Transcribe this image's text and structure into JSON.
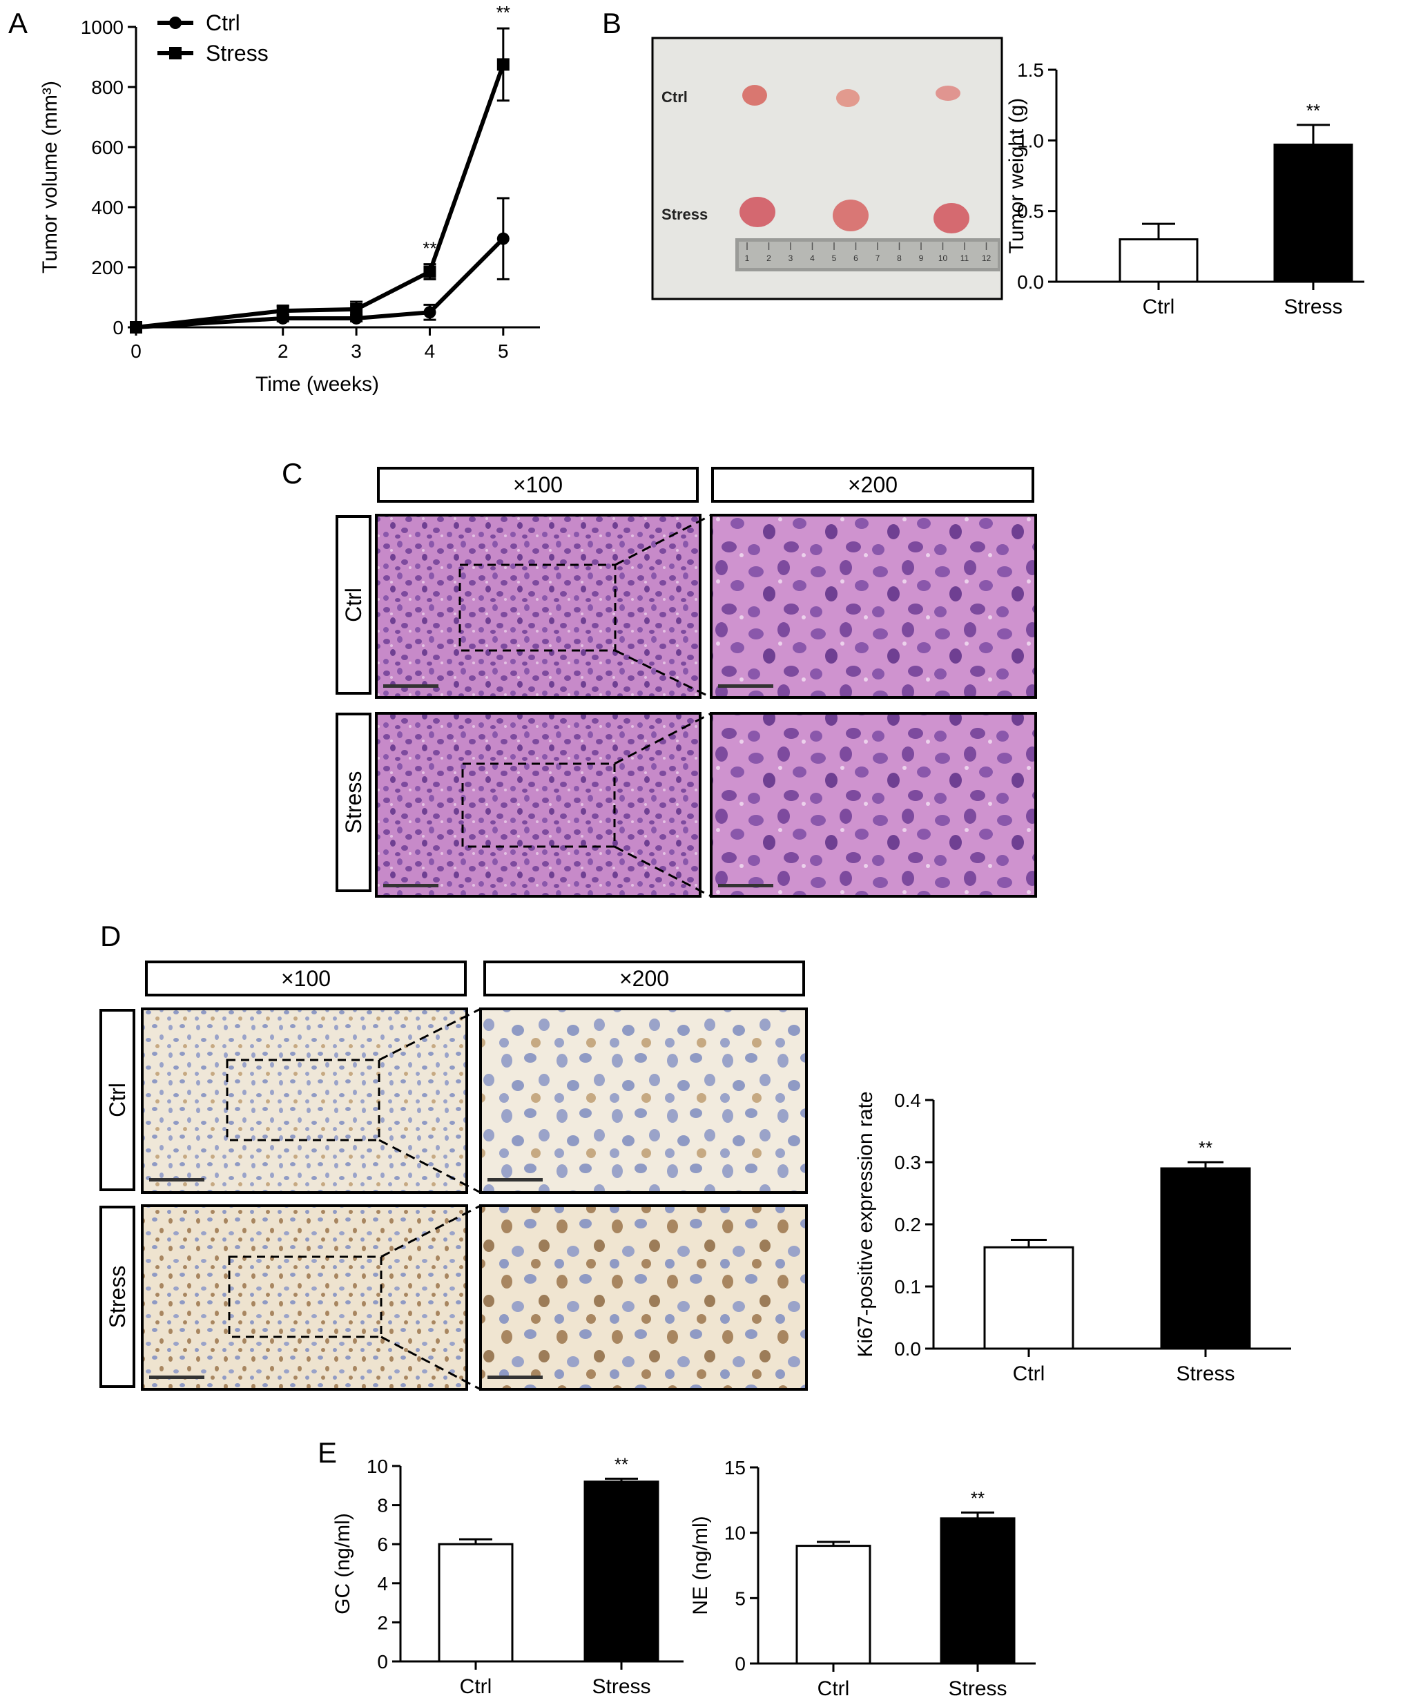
{
  "panels": {
    "A": "A",
    "B": "B",
    "C": "C",
    "D": "D",
    "E": "E"
  },
  "photo_B": {
    "row_ctrl": "Ctrl",
    "row_stress": "Stress",
    "ruler_ticks": [
      "1",
      "2",
      "3",
      "4",
      "5",
      "6",
      "7",
      "8",
      "9",
      "10",
      "11",
      "12"
    ]
  },
  "histology": {
    "mag_low": "×100",
    "mag_high": "×200",
    "row_ctrl": "Ctrl",
    "row_stress": "Stress"
  },
  "colors": {
    "ink": "#000000",
    "he_bg": "#c78ac9",
    "he_nuclei": "#7d4a9e",
    "ihc_bg": "#efe7d8",
    "ihc_nuclei": "#8f9ac4",
    "ihc_brown": "#a88660"
  },
  "chart_data": [
    {
      "id": "A",
      "type": "line",
      "xlabel": "Time (weeks)",
      "ylabel": "Tumor volume (mm³)",
      "x": [
        0,
        2,
        3,
        4,
        5
      ],
      "xticks": [
        "0",
        "2",
        "3",
        "4",
        "5"
      ],
      "yticks": [
        "0",
        "200",
        "400",
        "600",
        "800",
        "1000"
      ],
      "xlim": [
        0,
        5.5
      ],
      "ylim": [
        0,
        1000
      ],
      "legend_position": "top-left",
      "series": [
        {
          "name": "Ctrl",
          "marker": "circle",
          "values": [
            0,
            30,
            30,
            50,
            295
          ],
          "err": [
            0,
            10,
            10,
            25,
            135
          ]
        },
        {
          "name": "Stress",
          "marker": "square",
          "values": [
            0,
            55,
            60,
            185,
            875
          ],
          "err": [
            0,
            15,
            25,
            25,
            120
          ]
        }
      ],
      "annotations": [
        {
          "x": 4,
          "text": "**"
        },
        {
          "x": 5,
          "text": "**"
        }
      ]
    },
    {
      "id": "B",
      "type": "bar",
      "ylabel": "Tumor weight (g)",
      "categories": [
        "Ctrl",
        "Stress"
      ],
      "values": [
        0.3,
        0.97
      ],
      "err": [
        0.11,
        0.14
      ],
      "fills": [
        "#ffffff",
        "#000000"
      ],
      "yticks": [
        "0.0",
        "0.5",
        "1.0",
        "1.5"
      ],
      "ylim": [
        0,
        1.5
      ],
      "annotations": [
        {
          "category": "Stress",
          "text": "**"
        }
      ]
    },
    {
      "id": "D",
      "type": "bar",
      "ylabel": "Ki67-positive expression rate",
      "categories": [
        "Ctrl",
        "Stress"
      ],
      "values": [
        0.163,
        0.29
      ],
      "err": [
        0.012,
        0.01
      ],
      "fills": [
        "#ffffff",
        "#000000"
      ],
      "yticks": [
        "0.0",
        "0.1",
        "0.2",
        "0.3",
        "0.4"
      ],
      "ylim": [
        0,
        0.4
      ],
      "annotations": [
        {
          "category": "Stress",
          "text": "**"
        }
      ]
    },
    {
      "id": "E1",
      "type": "bar",
      "ylabel": "GC (ng/ml)",
      "categories": [
        "Ctrl",
        "Stress"
      ],
      "values": [
        6.0,
        9.2
      ],
      "err": [
        0.25,
        0.15
      ],
      "fills": [
        "#ffffff",
        "#000000"
      ],
      "yticks": [
        "0",
        "2",
        "4",
        "6",
        "8",
        "10"
      ],
      "ylim": [
        0,
        10
      ],
      "annotations": [
        {
          "category": "Stress",
          "text": "**"
        }
      ]
    },
    {
      "id": "E2",
      "type": "bar",
      "ylabel": "NE (ng/ml)",
      "categories": [
        "Ctrl",
        "Stress"
      ],
      "values": [
        9.0,
        11.1
      ],
      "err": [
        0.3,
        0.45
      ],
      "fills": [
        "#ffffff",
        "#000000"
      ],
      "yticks": [
        "0",
        "5",
        "10",
        "15"
      ],
      "ylim": [
        0,
        15
      ],
      "annotations": [
        {
          "category": "Stress",
          "text": "**"
        }
      ]
    }
  ]
}
